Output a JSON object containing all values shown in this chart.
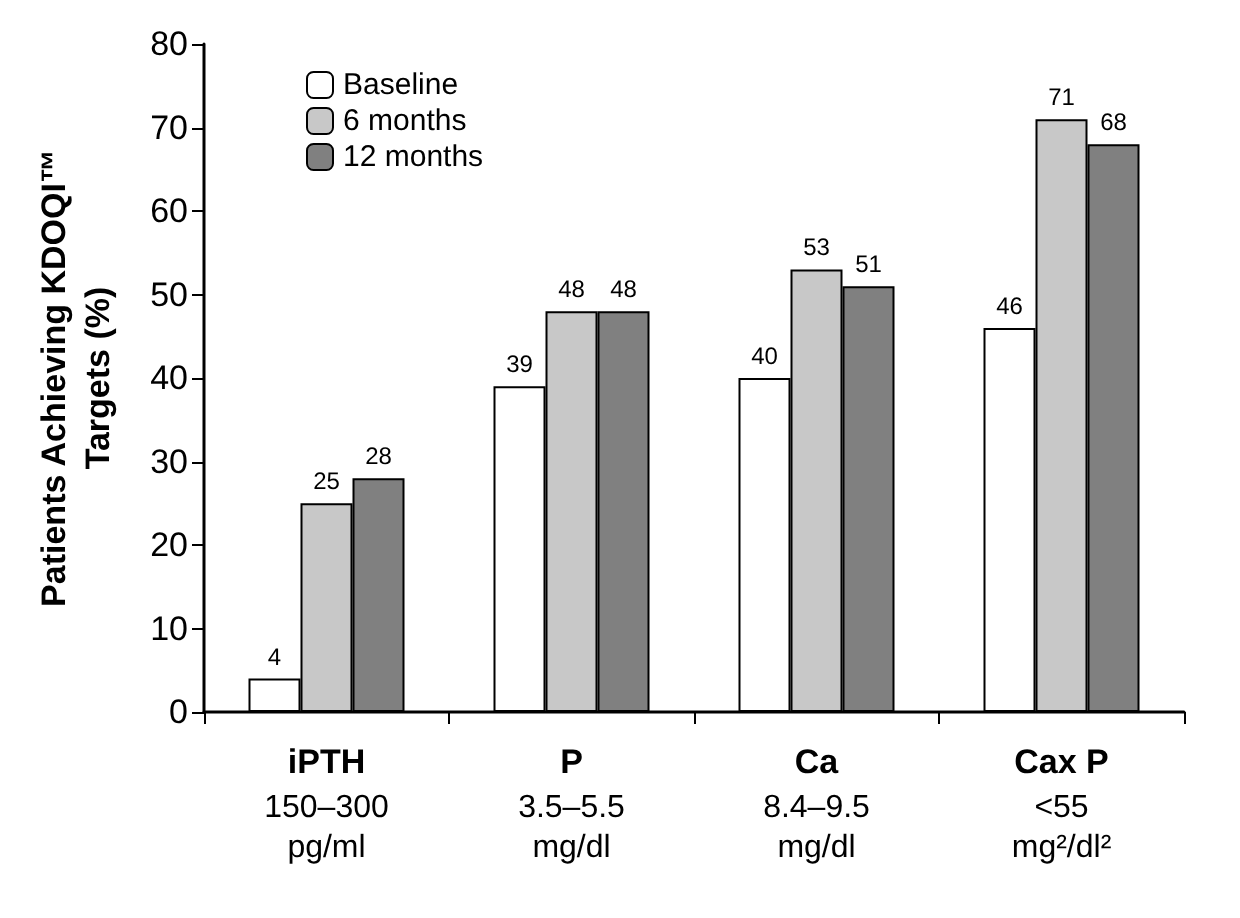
{
  "chart_data": {
    "type": "bar",
    "ylabel": "Patients Achieving KDOQI™\nTargets (%)",
    "categories": [
      "iPTH\n150–300\npg/ml",
      "P\n3.5–5.5\nmg/dl",
      "Ca\n8.4–9.5\nmg/dl",
      "Cax P\n<55\nmg²/dl²"
    ],
    "series": [
      {
        "name": "Baseline",
        "color": "#ffffff",
        "values": [
          4,
          39,
          40,
          46
        ]
      },
      {
        "name": "6 months",
        "color": "#c8c8c8",
        "values": [
          25,
          48,
          53,
          71
        ]
      },
      {
        "name": "12 months",
        "color": "#808080",
        "values": [
          28,
          48,
          51,
          68
        ]
      }
    ],
    "ylim": [
      0,
      80
    ],
    "yticks": [
      0,
      10,
      20,
      30,
      40,
      50,
      60,
      70,
      80
    ],
    "grid": false,
    "legend": "top left",
    "data_labels": true
  }
}
